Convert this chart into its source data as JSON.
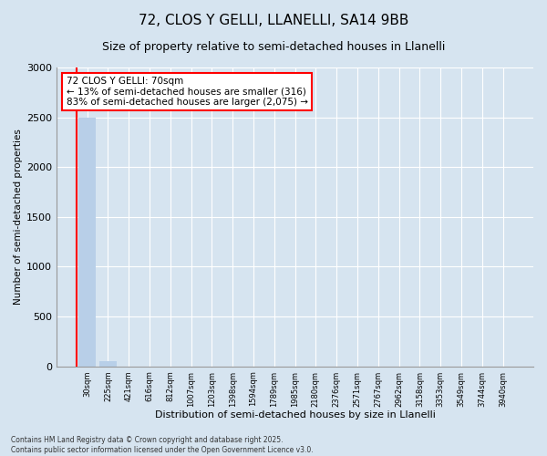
{
  "title_line1": "72, CLOS Y GELLI, LLANELLI, SA14 9BB",
  "title_line2": "Size of property relative to semi-detached houses in Llanelli",
  "xlabel": "Distribution of semi-detached houses by size in Llanelli",
  "ylabel": "Number of semi-detached properties",
  "footnote": "Contains HM Land Registry data © Crown copyright and database right 2025.\nContains public sector information licensed under the Open Government Licence v3.0.",
  "annotation_title": "72 CLOS Y GELLI: 70sqm",
  "annotation_line2": "← 13% of semi-detached houses are smaller (316)",
  "annotation_line3": "83% of semi-detached houses are larger (2,075) →",
  "bar_labels": [
    "30sqm",
    "225sqm",
    "421sqm",
    "616sqm",
    "812sqm",
    "1007sqm",
    "1203sqm",
    "1398sqm",
    "1594sqm",
    "1789sqm",
    "1985sqm",
    "2180sqm",
    "2376sqm",
    "2571sqm",
    "2767sqm",
    "2962sqm",
    "3158sqm",
    "3353sqm",
    "3549sqm",
    "3744sqm",
    "3940sqm"
  ],
  "bar_values": [
    2500,
    50,
    0,
    0,
    0,
    0,
    0,
    0,
    0,
    0,
    0,
    0,
    0,
    0,
    0,
    0,
    0,
    0,
    0,
    0,
    0
  ],
  "bar_color": "#b8cfe8",
  "background_color": "#d6e4f0",
  "plot_bg_color": "#d6e4f0",
  "ylim": [
    0,
    3000
  ],
  "yticks": [
    0,
    500,
    1000,
    1500,
    2000,
    2500,
    3000
  ],
  "grid_color": "#ffffff",
  "red_line_x": -0.5,
  "figsize": [
    6.0,
    5.0
  ],
  "dpi": 100
}
